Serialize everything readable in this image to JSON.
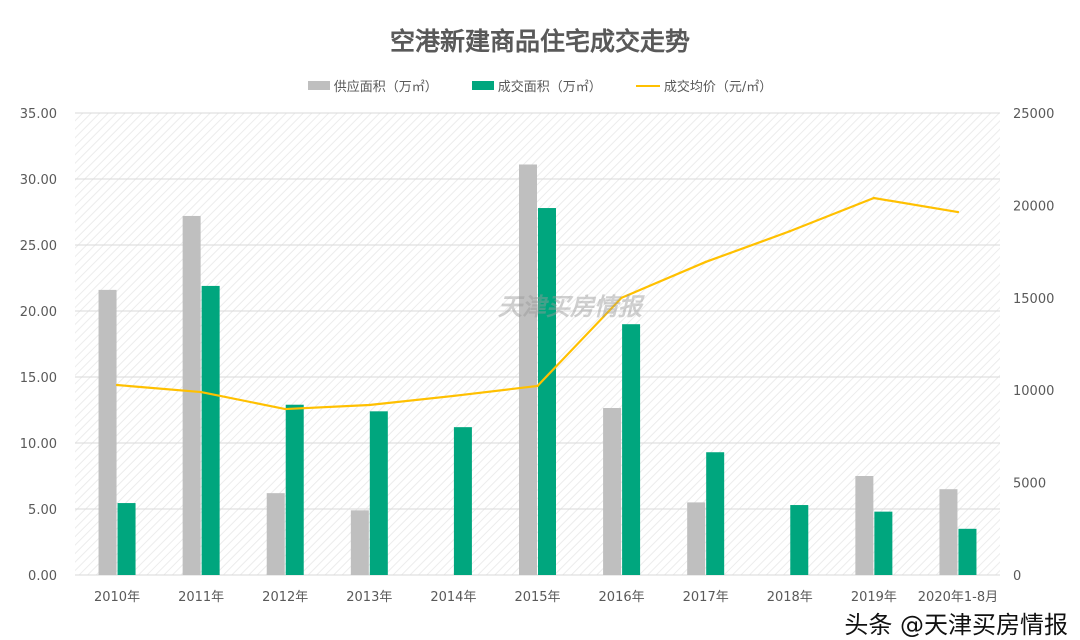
{
  "chart_data": {
    "type": "bar",
    "title": "空港新建商品住宅成交走势",
    "categories": [
      "2010年",
      "2011年",
      "2012年",
      "2013年",
      "2014年",
      "2015年",
      "2016年",
      "2017年",
      "2018年",
      "2019年",
      "2020年1-8月"
    ],
    "series": [
      {
        "name": "供应面积（万㎡）",
        "type": "bar",
        "axis": "left",
        "color": "#bfbfbf",
        "values": [
          21.6,
          27.2,
          6.2,
          4.9,
          null,
          31.1,
          12.65,
          5.5,
          null,
          7.5,
          6.5
        ]
      },
      {
        "name": "成交面积（万㎡）",
        "type": "bar",
        "axis": "left",
        "color": "#00a67e",
        "values": [
          5.45,
          21.9,
          12.9,
          12.4,
          11.2,
          27.8,
          19.0,
          9.3,
          5.3,
          4.8,
          3.5
        ]
      },
      {
        "name": "成交均价（元/㎡）",
        "type": "line",
        "axis": "right",
        "color": "#ffc000",
        "values": [
          10280,
          9900,
          8980,
          9200,
          9690,
          10230,
          15000,
          16940,
          18600,
          20400,
          19640
        ]
      }
    ],
    "ylim": [
      0,
      35
    ],
    "yticks": [
      "0.00",
      "5.00",
      "10.00",
      "15.00",
      "20.00",
      "25.00",
      "30.00",
      "35.00"
    ],
    "y2lim": [
      0,
      25000
    ],
    "y2ticks": [
      "0",
      "5000",
      "10000",
      "15000",
      "20000",
      "25000"
    ],
    "legend": "top",
    "grid": true
  },
  "watermark": "天津买房情报",
  "footer": "头条 @天津买房情报"
}
